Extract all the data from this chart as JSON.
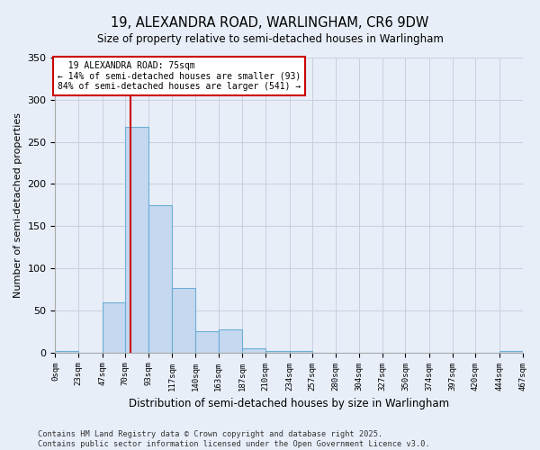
{
  "title1": "19, ALEXANDRA ROAD, WARLINGHAM, CR6 9DW",
  "title2": "Size of property relative to semi-detached houses in Warlingham",
  "xlabel": "Distribution of semi-detached houses by size in Warlingham",
  "ylabel": "Number of semi-detached properties",
  "bin_edges": [
    0,
    23,
    47,
    70,
    93,
    117,
    140,
    163,
    187,
    210,
    234,
    257,
    280,
    304,
    327,
    350,
    374,
    397,
    420,
    444,
    467
  ],
  "bar_heights": [
    2,
    0,
    60,
    268,
    175,
    77,
    25,
    27,
    5,
    2,
    2,
    0,
    0,
    0,
    0,
    0,
    0,
    0,
    0,
    2,
    0
  ],
  "bar_color": "#c5d8f0",
  "bar_edge_color": "#6baed6",
  "property_size": 75,
  "property_label": "19 ALEXANDRA ROAD: 75sqm",
  "pct_smaller": 14,
  "pct_larger": 84,
  "n_smaller": 93,
  "n_larger": 541,
  "vline_color": "#cc0000",
  "annotation_box_color": "#ffffff",
  "annotation_box_edge": "#cc0000",
  "ylim": [
    0,
    350
  ],
  "yticks": [
    0,
    50,
    100,
    150,
    200,
    250,
    300,
    350
  ],
  "footer_line1": "Contains HM Land Registry data © Crown copyright and database right 2025.",
  "footer_line2": "Contains public sector information licensed under the Open Government Licence v3.0.",
  "bg_color": "#e8eef8"
}
